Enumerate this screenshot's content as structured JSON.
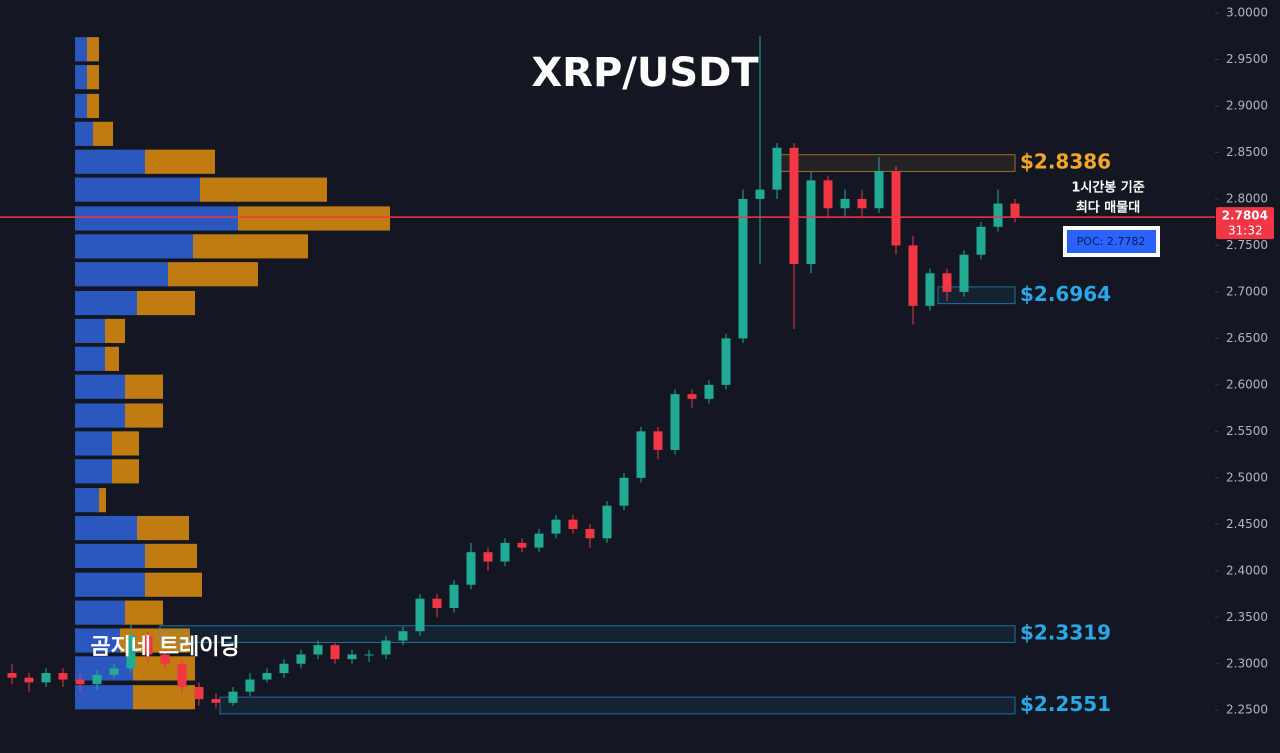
{
  "chart_data": {
    "type": "candlestick",
    "title": "XRP/USDT",
    "watermark": "곰지네 트레이딩",
    "open": [
      2.29,
      2.285,
      2.28,
      2.29,
      2.283,
      2.278,
      2.288,
      2.295,
      2.33,
      2.31,
      2.3,
      2.275,
      2.262,
      2.258,
      2.27,
      2.283,
      2.29,
      2.3,
      2.31,
      2.32,
      2.305,
      2.31,
      2.31,
      2.325,
      2.335,
      2.37,
      2.36,
      2.385,
      2.42,
      2.41,
      2.43,
      2.425,
      2.44,
      2.455,
      2.445,
      2.435,
      2.47,
      2.5,
      2.55,
      2.53,
      2.59,
      2.585,
      2.6,
      2.65,
      2.8,
      2.81,
      2.855,
      2.73,
      2.82,
      2.79,
      2.8,
      2.79,
      2.83,
      2.75,
      2.685,
      2.72,
      2.7,
      2.74,
      2.77,
      2.795
    ],
    "high": [
      2.3,
      2.29,
      2.295,
      2.295,
      2.29,
      2.293,
      2.3,
      2.345,
      2.335,
      2.315,
      2.305,
      2.28,
      2.268,
      2.275,
      2.29,
      2.295,
      2.305,
      2.315,
      2.325,
      2.322,
      2.315,
      2.315,
      2.33,
      2.34,
      2.375,
      2.375,
      2.39,
      2.43,
      2.425,
      2.435,
      2.435,
      2.445,
      2.46,
      2.46,
      2.45,
      2.475,
      2.505,
      2.555,
      2.555,
      2.595,
      2.595,
      2.605,
      2.655,
      2.81,
      2.975,
      2.86,
      2.86,
      2.83,
      2.825,
      2.81,
      2.81,
      2.845,
      2.835,
      2.76,
      2.725,
      2.725,
      2.745,
      2.775,
      2.81,
      2.8
    ],
    "low": [
      2.278,
      2.27,
      2.275,
      2.275,
      2.27,
      2.272,
      2.285,
      2.29,
      2.3,
      2.295,
      2.268,
      2.255,
      2.252,
      2.255,
      2.265,
      2.28,
      2.285,
      2.295,
      2.305,
      2.3,
      2.3,
      2.302,
      2.305,
      2.32,
      2.33,
      2.35,
      2.355,
      2.38,
      2.4,
      2.405,
      2.42,
      2.42,
      2.435,
      2.44,
      2.425,
      2.43,
      2.465,
      2.495,
      2.52,
      2.525,
      2.575,
      2.58,
      2.595,
      2.645,
      2.73,
      2.8,
      2.66,
      2.72,
      2.78,
      2.78,
      2.78,
      2.785,
      2.74,
      2.665,
      2.68,
      2.69,
      2.695,
      2.735,
      2.765,
      2.775
    ],
    "close": [
      2.285,
      2.28,
      2.29,
      2.283,
      2.278,
      2.288,
      2.295,
      2.33,
      2.31,
      2.3,
      2.275,
      2.262,
      2.258,
      2.27,
      2.283,
      2.29,
      2.3,
      2.31,
      2.32,
      2.305,
      2.31,
      2.31,
      2.325,
      2.335,
      2.37,
      2.36,
      2.385,
      2.42,
      2.41,
      2.43,
      2.425,
      2.44,
      2.455,
      2.445,
      2.435,
      2.47,
      2.5,
      2.55,
      2.53,
      2.59,
      2.585,
      2.6,
      2.65,
      2.8,
      2.81,
      2.855,
      2.73,
      2.82,
      2.79,
      2.8,
      2.79,
      2.83,
      2.75,
      2.685,
      2.72,
      2.7,
      2.74,
      2.77,
      2.795,
      2.7804
    ],
    "colors": {
      "up": "#22ab94",
      "down": "#f23645"
    },
    "ylim": [
      2.204,
      3.014
    ],
    "yticks": [
      {
        "value": 2.25,
        "label": "2.2500"
      },
      {
        "value": 2.3,
        "label": "2.3000"
      },
      {
        "value": 2.35,
        "label": "2.3500"
      },
      {
        "value": 2.4,
        "label": "2.4000"
      },
      {
        "value": 2.45,
        "label": "2.4500"
      },
      {
        "value": 2.5,
        "label": "2.5000"
      },
      {
        "value": 2.55,
        "label": "2.5500"
      },
      {
        "value": 2.6,
        "label": "2.6000"
      },
      {
        "value": 2.65,
        "label": "2.6500"
      },
      {
        "value": 2.7,
        "label": "2.7000"
      },
      {
        "value": 2.75,
        "label": "2.7500"
      },
      {
        "value": 2.8,
        "label": "2.8000"
      },
      {
        "value": 2.85,
        "label": "2.8500"
      },
      {
        "value": 2.9,
        "label": "2.9000"
      },
      {
        "value": 2.95,
        "label": "2.9500"
      },
      {
        "value": 3.0,
        "label": "3.0000"
      }
    ],
    "last_price": {
      "value": 2.7804,
      "label": "2.7804",
      "countdown": "31:32",
      "color": "#f23645"
    },
    "levels": [
      {
        "label": "$2.8386",
        "value": 2.8386,
        "color": "#f5a623"
      },
      {
        "label": "$2.6964",
        "value": 2.6964,
        "color": "#2aa7e8"
      },
      {
        "label": "$2.3319",
        "value": 2.3319,
        "color": "#2aa7e8"
      },
      {
        "label": "$2.2551",
        "value": 2.2551,
        "color": "#2aa7e8"
      }
    ],
    "poc": {
      "value": 2.7782,
      "label": "POC: 2.7782",
      "note": [
        "1시간봉 기준",
        "최다 매물대"
      ]
    },
    "volume_profile": {
      "prices": [
        2.961,
        2.931,
        2.9,
        2.87,
        2.84,
        2.81,
        2.779,
        2.749,
        2.719,
        2.688,
        2.658,
        2.628,
        2.598,
        2.567,
        2.537,
        2.507,
        2.476,
        2.446,
        2.416,
        2.385,
        2.355,
        2.325,
        2.295,
        2.264
      ],
      "buy": [
        12,
        12,
        12,
        18,
        70,
        125,
        163,
        118,
        93,
        62,
        30,
        30,
        50,
        50,
        37,
        37,
        24,
        62,
        70,
        70,
        50,
        45,
        58,
        58
      ],
      "sell": [
        12,
        12,
        12,
        20,
        70,
        127,
        152,
        115,
        90,
        58,
        20,
        14,
        38,
        38,
        27,
        27,
        7,
        52,
        52,
        57,
        38,
        70,
        62,
        62
      ],
      "colors": {
        "buy": "#2f5fd0",
        "sell": "#d4860f"
      }
    }
  }
}
